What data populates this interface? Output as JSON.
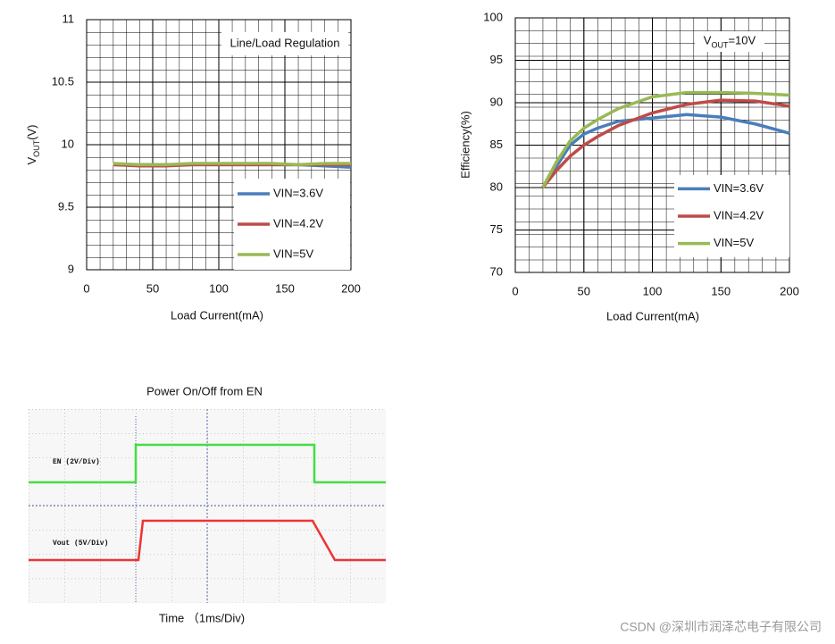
{
  "chart_data": [
    {
      "type": "line",
      "annotation": {
        "text": "Line/Load Regulation"
      },
      "x_label": "Load Current(mA)",
      "y_label": {
        "main": "V",
        "sub": "OUT",
        "suffix": "(V)"
      },
      "x": [
        20,
        40,
        60,
        80,
        100,
        120,
        140,
        160,
        180,
        200
      ],
      "series": [
        {
          "name": "VIN=3.6V",
          "color": "#4a7ebb",
          "values": [
            9.84,
            9.84,
            9.84,
            9.84,
            9.84,
            9.84,
            9.84,
            9.84,
            9.83,
            9.82
          ]
        },
        {
          "name": "VIN=4.2V",
          "color": "#be4b48",
          "values": [
            9.84,
            9.83,
            9.83,
            9.84,
            9.84,
            9.84,
            9.84,
            9.84,
            9.84,
            9.84
          ]
        },
        {
          "name": "VIN=5V",
          "color": "#98b954",
          "values": [
            9.85,
            9.84,
            9.84,
            9.85,
            9.85,
            9.85,
            9.85,
            9.84,
            9.85,
            9.85
          ]
        }
      ],
      "xlim": [
        0,
        200
      ],
      "xticks": [
        0,
        50,
        100,
        150,
        200
      ],
      "ylim": [
        9,
        11
      ],
      "yticks": [
        9,
        9.5,
        10,
        10.5,
        11
      ],
      "grid": true,
      "legend": "lower right"
    },
    {
      "type": "line",
      "annotation": {
        "main": "V",
        "sub": "OUT",
        "suffix": "=10V"
      },
      "x_label": "Load Current(mA)",
      "y_label": "Efficiency(%)",
      "x": [
        20,
        30,
        40,
        50,
        60,
        75,
        100,
        125,
        150,
        175,
        200
      ],
      "series": [
        {
          "name": "VIN=3.6V",
          "color": "#4a7ebb",
          "values": [
            80,
            82.5,
            85,
            86.3,
            87,
            87.8,
            88.2,
            88.6,
            88.3,
            87.5,
            86.4
          ]
        },
        {
          "name": "VIN=4.2V",
          "color": "#be4b48",
          "values": [
            80,
            82,
            83.7,
            85,
            86,
            87.3,
            88.8,
            89.8,
            90.3,
            90.2,
            89.6
          ]
        },
        {
          "name": "VIN=5V",
          "color": "#98b954",
          "values": [
            80,
            83,
            85.5,
            87,
            88,
            89.3,
            90.7,
            91.2,
            91.2,
            91.1,
            90.9
          ]
        }
      ],
      "xlim": [
        0,
        200
      ],
      "xticks": [
        0,
        50,
        100,
        150,
        200
      ],
      "ylim": [
        70,
        100
      ],
      "yticks": [
        70,
        75,
        80,
        85,
        90,
        95,
        100
      ],
      "grid": true,
      "legend": "lower right"
    }
  ],
  "scope": {
    "title": "Power On/Off from EN",
    "ch1": "EN  (2V/Div)",
    "ch2": "Vout  (5V/Div)",
    "x_label": "Time  （1ms/Div)"
  },
  "watermark": "CSDN @深圳市润泽芯电子有限公司"
}
